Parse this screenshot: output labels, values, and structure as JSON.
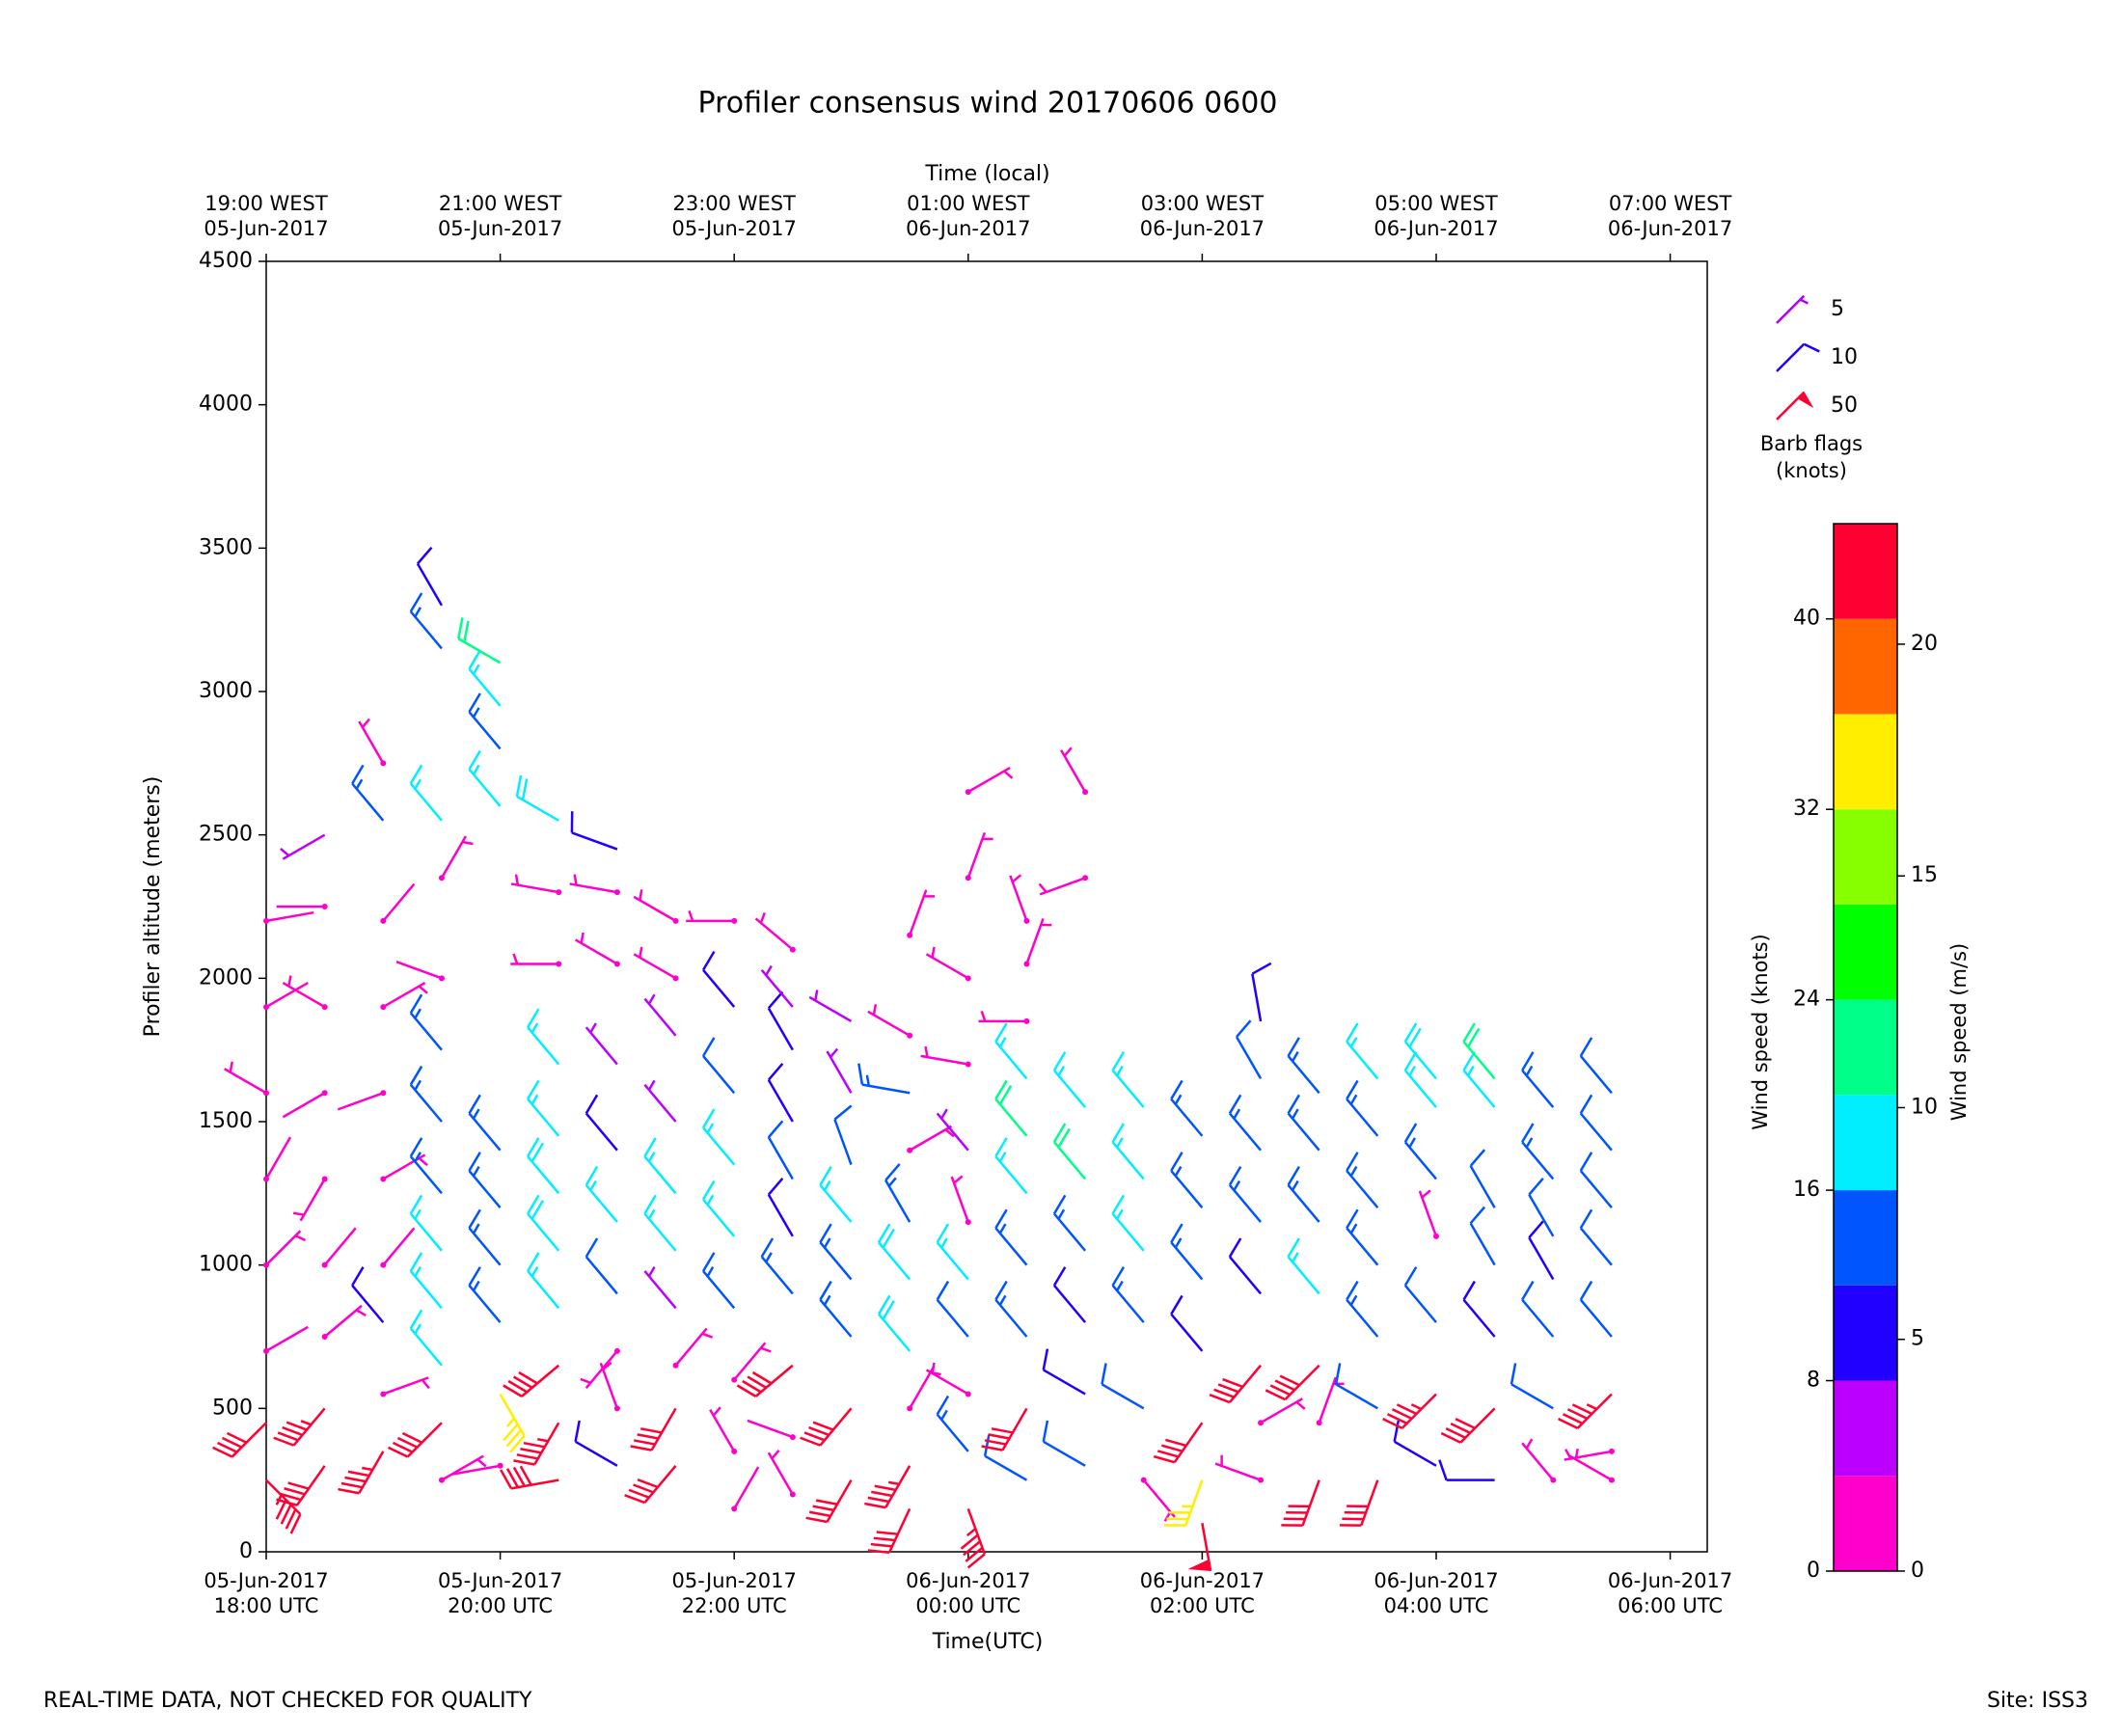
{
  "chart_data": {
    "type": "barbs",
    "title": "Profiler consensus wind 20170606 0600",
    "xlabel": "Time(UTC)",
    "x2label": "Time (local)",
    "ylabel": "Profiler altitude (meters)",
    "xlim": [
      "2017-06-05T18:00Z",
      "2017-06-06T06:19Z"
    ],
    "ylim": [
      0,
      4500
    ],
    "yticks": [
      0,
      500,
      1000,
      1500,
      2000,
      2500,
      3000,
      3500,
      4000,
      4500
    ],
    "xticks": [
      {
        "value": "2017-06-05T18:00Z",
        "label": [
          "05-Jun-2017",
          "18:00 UTC"
        ]
      },
      {
        "value": "2017-06-05T20:00Z",
        "label": [
          "05-Jun-2017",
          "20:00 UTC"
        ]
      },
      {
        "value": "2017-06-05T22:00Z",
        "label": [
          "05-Jun-2017",
          "22:00 UTC"
        ]
      },
      {
        "value": "2017-06-06T00:00Z",
        "label": [
          "06-Jun-2017",
          "00:00 UTC"
        ]
      },
      {
        "value": "2017-06-06T02:00Z",
        "label": [
          "06-Jun-2017",
          "02:00 UTC"
        ]
      },
      {
        "value": "2017-06-06T04:00Z",
        "label": [
          "06-Jun-2017",
          "04:00 UTC"
        ]
      },
      {
        "value": "2017-06-06T06:00Z",
        "label": [
          "06-Jun-2017",
          "06:00 UTC"
        ]
      }
    ],
    "x2ticks": [
      {
        "value": "2017-06-05T18:00Z",
        "label": [
          "19:00 WEST",
          "05-Jun-2017"
        ]
      },
      {
        "value": "2017-06-05T20:00Z",
        "label": [
          "21:00 WEST",
          "05-Jun-2017"
        ]
      },
      {
        "value": "2017-06-05T22:00Z",
        "label": [
          "23:00 WEST",
          "05-Jun-2017"
        ]
      },
      {
        "value": "2017-06-06T00:00Z",
        "label": [
          "01:00 WEST",
          "06-Jun-2017"
        ]
      },
      {
        "value": "2017-06-06T02:00Z",
        "label": [
          "03:00 WEST",
          "06-Jun-2017"
        ]
      },
      {
        "value": "2017-06-06T04:00Z",
        "label": [
          "05:00 WEST",
          "06-Jun-2017"
        ]
      },
      {
        "value": "2017-06-06T06:00Z",
        "label": [
          "07:00 WEST",
          "06-Jun-2017"
        ]
      }
    ],
    "profiles": [
      {
        "time": "2017-06-05T18:00Z",
        "altitude": [
          250,
          450,
          700,
          1000,
          1300,
          1600,
          1900,
          2200
        ],
        "speed": [
          44,
          42,
          2,
          3,
          2,
          3,
          2,
          2
        ],
        "direction": [
          135,
          225,
          60,
          45,
          30,
          300,
          60,
          80
        ]
      },
      {
        "time": "2017-06-05T18:30Z",
        "altitude": [
          300,
          500,
          750,
          1000,
          1300,
          1600,
          1900,
          2250,
          2500
        ],
        "speed": [
          42,
          44,
          3,
          2,
          3,
          2,
          3,
          2,
          4
        ],
        "direction": [
          215,
          220,
          50,
          40,
          210,
          240,
          300,
          270,
          240
        ]
      },
      {
        "time": "2017-06-05T19:00Z",
        "altitude": [
          350,
          550,
          800,
          1000,
          1300,
          1600,
          1900,
          2200,
          2550,
          2750
        ],
        "speed": [
          44,
          3,
          8,
          2,
          3,
          2,
          3,
          2,
          15,
          3
        ],
        "direction": [
          210,
          70,
          320,
          40,
          60,
          250,
          60,
          40,
          320,
          330
        ]
      },
      {
        "time": "2017-06-05T19:30Z",
        "altitude": [
          250,
          450,
          650,
          850,
          1050,
          1250,
          1500,
          1750,
          2000,
          2350,
          2550,
          3150,
          3300
        ],
        "speed": [
          3,
          42,
          16,
          16,
          16,
          14,
          14,
          15,
          2,
          3,
          17,
          14,
          8
        ],
        "direction": [
          60,
          225,
          320,
          320,
          320,
          320,
          320,
          320,
          290,
          30,
          320,
          320,
          330
        ]
      },
      {
        "time": "2017-06-05T20:00Z",
        "altitude": [
          300,
          550,
          800,
          1000,
          1200,
          1400,
          2600,
          2800,
          2950,
          3100
        ],
        "speed": [
          2,
          34,
          15,
          14,
          14,
          15,
          16,
          14,
          17,
          20
        ],
        "direction": [
          260,
          150,
          320,
          320,
          320,
          320,
          320,
          320,
          320,
          300
        ]
      },
      {
        "time": "2017-06-05T20:30Z",
        "altitude": [
          250,
          450,
          650,
          850,
          1050,
          1250,
          1450,
          1700,
          2050,
          2300,
          2550
        ],
        "speed": [
          42,
          44,
          42,
          17,
          18,
          19,
          17,
          17,
          3,
          3,
          18
        ],
        "direction": [
          260,
          210,
          230,
          320,
          320,
          320,
          320,
          320,
          270,
          280,
          300
        ]
      },
      {
        "time": "2017-06-05T21:00Z",
        "altitude": [
          300,
          500,
          700,
          900,
          1150,
          1400,
          1700,
          2050,
          2300,
          2450
        ],
        "speed": [
          10,
          3,
          3,
          12,
          17,
          11,
          7,
          3,
          3,
          10
        ],
        "direction": [
          300,
          340,
          220,
          320,
          320,
          320,
          320,
          300,
          280,
          290
        ]
      },
      {
        "time": "2017-06-05T21:30Z",
        "altitude": [
          300,
          500,
          650,
          850,
          1050,
          1250,
          1500,
          1800,
          2000,
          2200
        ],
        "speed": [
          42,
          42,
          3,
          7,
          17,
          17,
          7,
          7,
          3,
          3
        ],
        "direction": [
          220,
          210,
          40,
          320,
          320,
          320,
          320,
          320,
          300,
          300
        ]
      },
      {
        "time": "2017-06-05T22:00Z",
        "altitude": [
          150,
          350,
          600,
          850,
          1100,
          1350,
          1600,
          1900,
          2200
        ],
        "speed": [
          2,
          3,
          3,
          14,
          17,
          16,
          12,
          8,
          3
        ],
        "direction": [
          30,
          330,
          40,
          320,
          320,
          320,
          320,
          320,
          270
        ]
      },
      {
        "time": "2017-06-05T22:30Z",
        "altitude": [
          200,
          400,
          650,
          900,
          1100,
          1300,
          1500,
          1750,
          1900,
          2100
        ],
        "speed": [
          3,
          2,
          42,
          14,
          10,
          12,
          8,
          8,
          7,
          3
        ],
        "direction": [
          330,
          290,
          230,
          320,
          330,
          330,
          330,
          330,
          320,
          310
        ]
      },
      {
        "time": "2017-06-05T23:00Z",
        "altitude": [
          250,
          500,
          750,
          950,
          1150,
          1350,
          1600,
          1850
        ],
        "speed": [
          42,
          42,
          14,
          13,
          17,
          12,
          7,
          7
        ],
        "direction": [
          210,
          220,
          320,
          320,
          320,
          340,
          330,
          300
        ]
      },
      {
        "time": "2017-06-05T23:30Z",
        "altitude": [
          150,
          300,
          500,
          700,
          950,
          1150,
          1400,
          1600,
          1800,
          2150
        ],
        "speed": [
          42,
          44,
          3,
          18,
          18,
          14,
          3,
          14,
          3,
          3
        ],
        "direction": [
          205,
          210,
          30,
          320,
          320,
          330,
          60,
          280,
          300,
          20
        ]
      },
      {
        "time": "2017-06-06T00:00Z",
        "altitude": [
          150,
          350,
          550,
          750,
          950,
          1150,
          1400,
          1700,
          2000,
          2350,
          2650
        ],
        "speed": [
          44,
          14,
          3,
          12,
          17,
          3,
          7,
          3,
          3,
          3,
          3
        ],
        "direction": [
          160,
          320,
          300,
          320,
          320,
          340,
          320,
          280,
          300,
          20,
          60
        ]
      },
      {
        "time": "2017-06-06T00:30Z",
        "altitude": [
          250,
          500,
          750,
          1000,
          1250,
          1450,
          1650,
          1850,
          2050,
          2200
        ],
        "speed": [
          12,
          42,
          14,
          14,
          17,
          20,
          17,
          3,
          3,
          3
        ],
        "direction": [
          300,
          210,
          320,
          320,
          320,
          320,
          320,
          270,
          20,
          340
        ]
      },
      {
        "time": "2017-06-06T01:00Z",
        "altitude": [
          300,
          550,
          800,
          1050,
          1300,
          1550,
          2350,
          2650
        ],
        "speed": [
          12,
          10,
          10,
          14,
          20,
          17,
          3,
          3
        ],
        "direction": [
          300,
          300,
          320,
          320,
          320,
          320,
          250,
          330
        ]
      },
      {
        "time": "2017-06-06T01:30Z",
        "altitude": [
          250,
          500,
          800,
          1050,
          1300,
          1550
        ],
        "speed": [
          3,
          12,
          14,
          17,
          17,
          17
        ],
        "direction": [
          140,
          300,
          320,
          320,
          320,
          320
        ]
      },
      {
        "time": "2017-06-06T02:00Z",
        "altitude": [
          100,
          250,
          450,
          700,
          950,
          1200,
          1450
        ],
        "speed": [
          48,
          34,
          42,
          8,
          15,
          15,
          14
        ],
        "direction": [
          170,
          200,
          215,
          320,
          320,
          320,
          320
        ]
      },
      {
        "time": "2017-06-06T02:30Z",
        "altitude": [
          250,
          450,
          650,
          900,
          1150,
          1400,
          1650,
          1850
        ],
        "speed": [
          3,
          3,
          42,
          8,
          14,
          14,
          12,
          8
        ],
        "direction": [
          290,
          60,
          220,
          320,
          320,
          320,
          330,
          350
        ]
      },
      {
        "time": "2017-06-06T03:00Z",
        "altitude": [
          250,
          450,
          650,
          900,
          1150,
          1400,
          1600
        ],
        "speed": [
          42,
          3,
          42,
          17,
          14,
          15,
          15
        ],
        "direction": [
          200,
          20,
          225,
          320,
          320,
          320,
          320
        ]
      },
      {
        "time": "2017-06-06T03:30Z",
        "altitude": [
          250,
          500,
          750,
          1000,
          1200,
          1450,
          1650
        ],
        "speed": [
          42,
          12,
          14,
          14,
          14,
          14,
          17
        ],
        "direction": [
          200,
          300,
          320,
          320,
          320,
          320,
          320
        ]
      },
      {
        "time": "2017-06-06T04:00Z",
        "altitude": [
          300,
          550,
          800,
          1100,
          1300,
          1550,
          1650
        ],
        "speed": [
          8,
          44,
          12,
          3,
          14,
          17,
          19
        ],
        "direction": [
          300,
          225,
          320,
          340,
          320,
          320,
          320
        ]
      },
      {
        "time": "2017-06-06T04:30Z",
        "altitude": [
          250,
          500,
          750,
          1000,
          1200,
          1550,
          1650
        ],
        "speed": [
          8,
          42,
          8,
          12,
          12,
          17,
          20
        ],
        "direction": [
          270,
          225,
          320,
          330,
          330,
          320,
          320
        ]
      },
      {
        "time": "2017-06-06T05:00Z",
        "altitude": [
          250,
          500,
          750,
          950,
          1100,
          1300,
          1550
        ],
        "speed": [
          3,
          12,
          12,
          8,
          12,
          15,
          15
        ],
        "direction": [
          320,
          300,
          320,
          330,
          330,
          320,
          320
        ]
      },
      {
        "time": "2017-06-06T05:30Z",
        "altitude": [
          250,
          350,
          550,
          750,
          1000,
          1200,
          1400,
          1600
        ],
        "speed": [
          3,
          3,
          44,
          12,
          12,
          12,
          12,
          12
        ],
        "direction": [
          300,
          260,
          225,
          320,
          320,
          320,
          320,
          320
        ]
      }
    ],
    "colorbar": {
      "ylabel": "Wind speed (knots)",
      "y2label": "Wind speed (m/s)",
      "ylim": [
        0,
        44
      ],
      "yticks": [
        0,
        8,
        16,
        24,
        32,
        40
      ],
      "y2lim": [
        0,
        22.6
      ],
      "y2ticks": [
        0,
        5,
        10,
        15,
        20
      ],
      "bounds": [
        0,
        4,
        8,
        12,
        16,
        20,
        24,
        28,
        32,
        36,
        40,
        44
      ],
      "colors": [
        "#ff00cc",
        "#bb00ff",
        "#2200ff",
        "#0055ff",
        "#00eeff",
        "#00ff88",
        "#00ff00",
        "#88ff00",
        "#ffee00",
        "#ff6600",
        "#ff0033"
      ]
    },
    "barb_legend": {
      "title": [
        "Barb flags",
        "(knots)"
      ],
      "items": [
        {
          "value": 5,
          "color": "#aa00ff"
        },
        {
          "value": 10,
          "color": "#2200ff"
        },
        {
          "value": 50,
          "color": "#ff0033"
        }
      ]
    }
  },
  "footer": {
    "note": "REAL-TIME DATA, NOT CHECKED FOR QUALITY",
    "site": "Site: ISS3"
  }
}
